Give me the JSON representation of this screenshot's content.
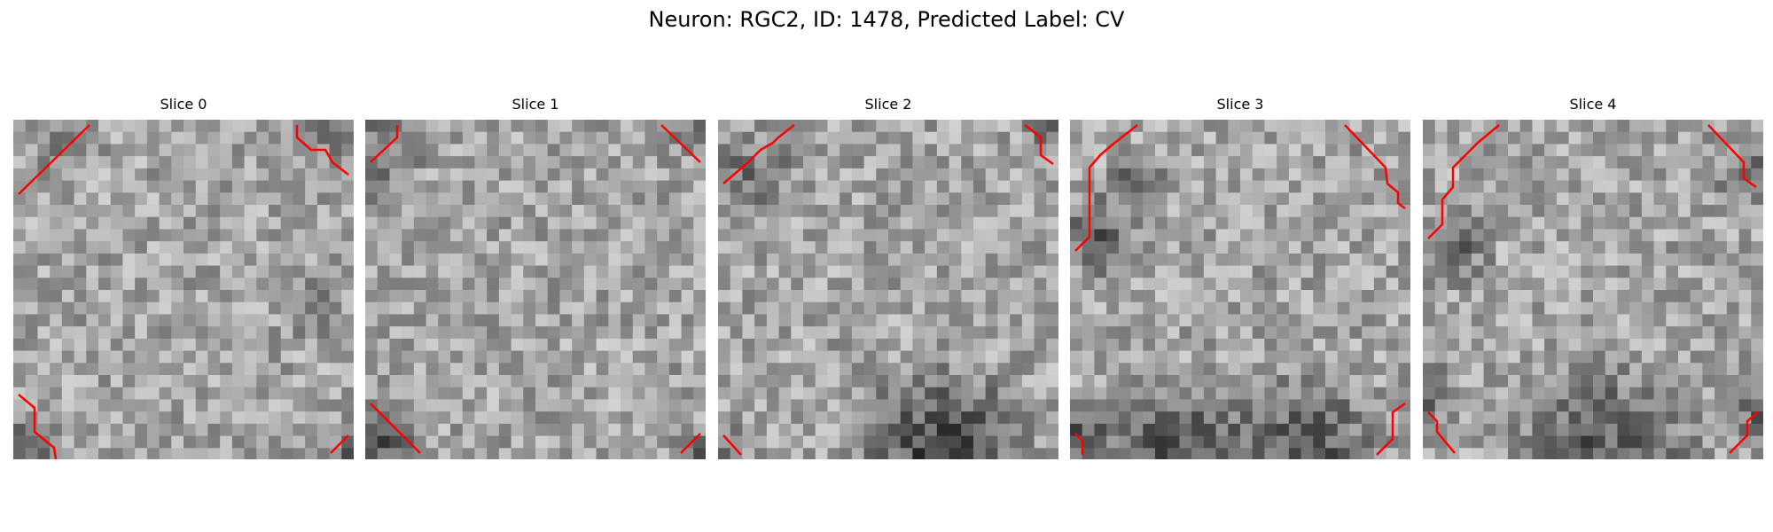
{
  "figure": {
    "title": "Neuron: RGC2, ID: 1478, Predicted Label: CV"
  },
  "colors": {
    "contour": "#ff0000",
    "background": "#ffffff"
  },
  "slices": [
    {
      "title": "Slice 0"
    },
    {
      "title": "Slice 1"
    },
    {
      "title": "Slice 2"
    },
    {
      "title": "Slice 3"
    },
    {
      "title": "Slice 4"
    }
  ]
}
